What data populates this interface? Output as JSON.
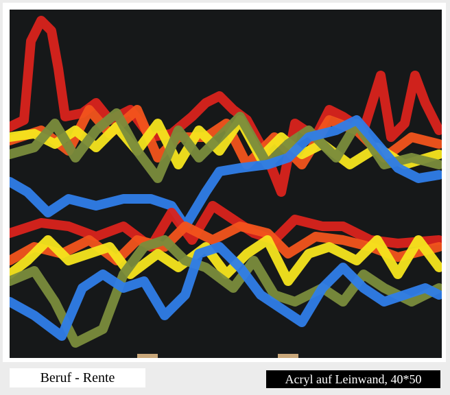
{
  "caption": {
    "title": "Beruf - Rente",
    "details": "Acryl auf Leinwand, 40*50"
  }
}
